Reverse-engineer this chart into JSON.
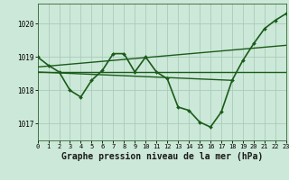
{
  "background_color": "#cce8d8",
  "grid_color": "#aaccbb",
  "line_color": "#1a5c1a",
  "marker_color": "#1a5c1a",
  "xlabel": "Graphe pression niveau de la mer (hPa)",
  "xlabel_fontsize": 7.0,
  "ylim": [
    1016.5,
    1020.6
  ],
  "xlim": [
    0,
    23
  ],
  "yticks": [
    1017,
    1018,
    1019,
    1020
  ],
  "xticks": [
    0,
    1,
    2,
    3,
    4,
    5,
    6,
    7,
    8,
    9,
    10,
    11,
    12,
    13,
    14,
    15,
    16,
    17,
    18,
    19,
    20,
    21,
    22,
    23
  ],
  "series": [
    {
      "x": [
        0,
        1,
        2,
        3,
        4,
        5,
        6,
        7,
        8,
        9,
        10,
        11,
        12,
        13,
        14,
        15,
        16,
        17,
        18,
        19,
        20,
        21,
        22,
        23
      ],
      "y": [
        1019.0,
        1018.75,
        1018.55,
        1018.0,
        1017.8,
        1018.3,
        1018.6,
        1019.1,
        1019.1,
        1018.55,
        1019.0,
        1018.55,
        1018.35,
        1017.5,
        1017.4,
        1017.05,
        1016.9,
        1017.35,
        1018.3,
        1018.9,
        1019.4,
        1019.85,
        1020.1,
        1020.3
      ],
      "style": "line_marker",
      "linewidth": 1.2
    },
    {
      "x": [
        0,
        23
      ],
      "y": [
        1018.7,
        1019.35
      ],
      "style": "line_only",
      "linewidth": 1.0
    },
    {
      "x": [
        0,
        23
      ],
      "y": [
        1018.55,
        1018.55
      ],
      "style": "line_only",
      "linewidth": 1.0
    },
    {
      "x": [
        0,
        18
      ],
      "y": [
        1018.55,
        1018.3
      ],
      "style": "line_only",
      "linewidth": 1.0
    }
  ]
}
